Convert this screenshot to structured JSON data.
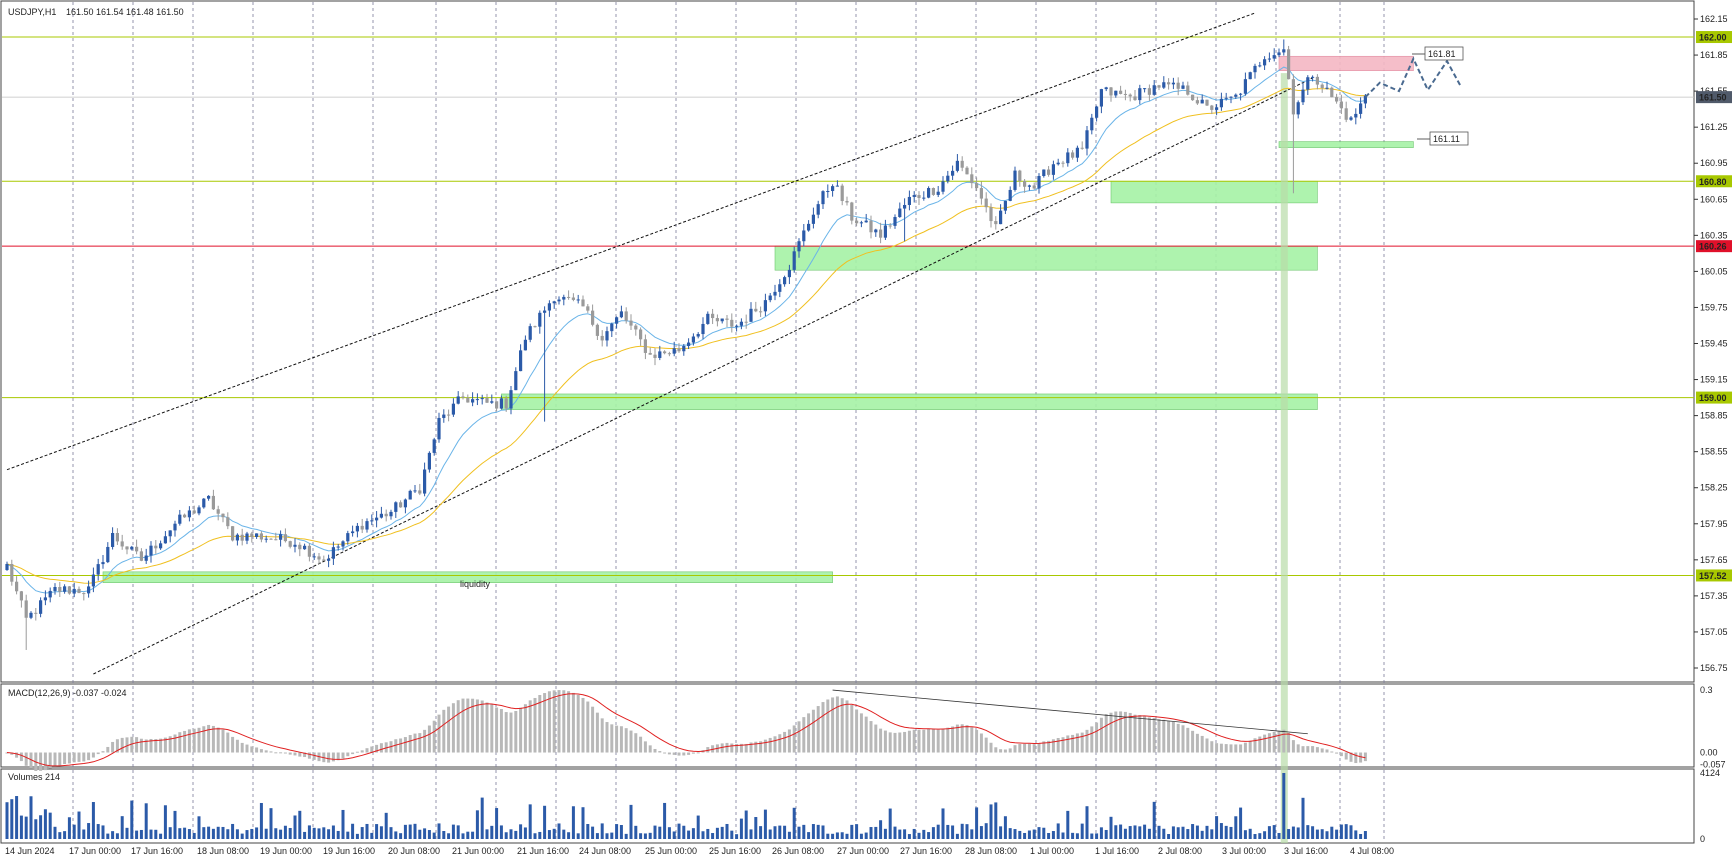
{
  "header": {
    "symbol": "USDJPY,H1",
    "ohlc": "161.50 161.54 161.48 161.50"
  },
  "panels": {
    "macd_label": "MACD(12,26,9) -0.037 -0.024",
    "volume_label": "Volumes 214"
  },
  "annotations": {
    "liquidity": "liquidity",
    "target_box": "161.81",
    "stop_box": "161.11"
  },
  "colors": {
    "bull_candle": "#2b5aa8",
    "bear_candle": "#9a9a9a",
    "ema_fast": "#6ab4e8",
    "ema_slow": "#f0c020",
    "level_line": "#a8c800",
    "red_line": "#e0102a",
    "zone_green": "#a6f2a6",
    "zone_red": "#f4b8c4",
    "macd_hist": "#b8b8b8",
    "macd_signal": "#e02020",
    "volume": "#2b5aa8",
    "grid": "#7a7a9a"
  },
  "chart_data": [
    {
      "type": "candlestick",
      "title": "USDJPY,H1",
      "x_tick_labels": [
        "14 Jun 2024",
        "17 Jun 00:00",
        "17 Jun 16:00",
        "18 Jun 08:00",
        "19 Jun 00:00",
        "19 Jun 16:00",
        "20 Jun 08:00",
        "21 Jun 00:00",
        "21 Jun 16:00",
        "24 Jun 08:00",
        "25 Jun 00:00",
        "25 Jun 16:00",
        "26 Jun 08:00",
        "27 Jun 00:00",
        "27 Jun 16:00",
        "28 Jun 08:00",
        "1 Jul 00:00",
        "1 Jul 16:00",
        "2 Jul 08:00",
        "3 Jul 00:00",
        "3 Jul 16:00",
        "4 Jul 08:00"
      ],
      "y_tick_labels": [
        "162.15",
        "161.85",
        "161.55",
        "161.25",
        "160.95",
        "160.65",
        "160.35",
        "160.05",
        "159.75",
        "159.45",
        "159.15",
        "158.85",
        "158.55",
        "158.25",
        "157.95",
        "157.65",
        "157.35",
        "157.05",
        "156.75"
      ],
      "ylim": [
        156.7,
        162.2
      ],
      "price_labels": [
        {
          "text": "162.00",
          "value": 162.0,
          "style": "level"
        },
        {
          "text": "161.50",
          "value": 161.5,
          "style": "current"
        },
        {
          "text": "160.80",
          "value": 160.8,
          "style": "level"
        },
        {
          "text": "160.26",
          "value": 160.26,
          "style": "red"
        },
        {
          "text": "159.00",
          "value": 159.0,
          "style": "level"
        },
        {
          "text": "157.52",
          "value": 157.52,
          "style": "level"
        }
      ],
      "horizontal_levels": [
        162.0,
        160.8,
        159.0,
        157.52
      ],
      "red_level": 160.26,
      "anchors": [
        {
          "i": 0,
          "p": 157.6
        },
        {
          "i": 4,
          "p": 157.15
        },
        {
          "i": 10,
          "p": 157.4
        },
        {
          "i": 17,
          "p": 157.4
        },
        {
          "i": 22,
          "p": 157.85
        },
        {
          "i": 28,
          "p": 157.65
        },
        {
          "i": 35,
          "p": 157.95
        },
        {
          "i": 42,
          "p": 158.15
        },
        {
          "i": 47,
          "p": 157.85
        },
        {
          "i": 52,
          "p": 157.85
        },
        {
          "i": 60,
          "p": 157.8
        },
        {
          "i": 66,
          "p": 157.65
        },
        {
          "i": 74,
          "p": 157.95
        },
        {
          "i": 80,
          "p": 158.05
        },
        {
          "i": 86,
          "p": 158.25
        },
        {
          "i": 90,
          "p": 158.8
        },
        {
          "i": 95,
          "p": 159.0
        },
        {
          "i": 100,
          "p": 158.95
        },
        {
          "i": 104,
          "p": 158.95
        },
        {
          "i": 108,
          "p": 159.5
        },
        {
          "i": 114,
          "p": 159.85
        },
        {
          "i": 120,
          "p": 159.75
        },
        {
          "i": 124,
          "p": 159.5
        },
        {
          "i": 128,
          "p": 159.7
        },
        {
          "i": 134,
          "p": 159.35
        },
        {
          "i": 140,
          "p": 159.4
        },
        {
          "i": 146,
          "p": 159.65
        },
        {
          "i": 152,
          "p": 159.6
        },
        {
          "i": 158,
          "p": 159.8
        },
        {
          "i": 163,
          "p": 160.1
        },
        {
          "i": 168,
          "p": 160.55
        },
        {
          "i": 172,
          "p": 160.8
        },
        {
          "i": 176,
          "p": 160.5
        },
        {
          "i": 182,
          "p": 160.35
        },
        {
          "i": 188,
          "p": 160.65
        },
        {
          "i": 194,
          "p": 160.75
        },
        {
          "i": 198,
          "p": 160.95
        },
        {
          "i": 202,
          "p": 160.75
        },
        {
          "i": 206,
          "p": 160.4
        },
        {
          "i": 210,
          "p": 160.85
        },
        {
          "i": 214,
          "p": 160.75
        },
        {
          "i": 218,
          "p": 160.95
        },
        {
          "i": 224,
          "p": 161.05
        },
        {
          "i": 228,
          "p": 161.55
        },
        {
          "i": 234,
          "p": 161.5
        },
        {
          "i": 240,
          "p": 161.6
        },
        {
          "i": 246,
          "p": 161.55
        },
        {
          "i": 250,
          "p": 161.4
        },
        {
          "i": 256,
          "p": 161.5
        },
        {
          "i": 262,
          "p": 161.85
        },
        {
          "i": 266,
          "p": 161.9
        },
        {
          "i": 268,
          "p": 161.4
        },
        {
          "i": 272,
          "p": 161.7
        },
        {
          "i": 276,
          "p": 161.5
        },
        {
          "i": 280,
          "p": 161.3
        },
        {
          "i": 283,
          "p": 161.5
        }
      ],
      "zones": [
        {
          "color": "green",
          "from_index": 230,
          "to_index": 273,
          "low": 160.62,
          "high": 160.8
        },
        {
          "color": "green",
          "from_index": 160,
          "to_index": 273,
          "low": 160.06,
          "high": 160.26
        },
        {
          "color": "green",
          "from_index": 103,
          "to_index": 273,
          "low": 158.9,
          "high": 159.03
        },
        {
          "color": "green",
          "from_index": 20,
          "to_index": 172,
          "low": 157.46,
          "high": 157.55
        },
        {
          "color": "red",
          "from_index": 265,
          "to_index": 293,
          "low": 161.72,
          "high": 161.84
        },
        {
          "color": "green",
          "from_index": 265,
          "to_index": 293,
          "low": 161.08,
          "high": 161.13
        }
      ],
      "trend_lines": [
        {
          "from": {
            "i": 0,
            "p": 158.4
          },
          "to": {
            "i": 260,
            "p": 162.2
          }
        },
        {
          "from": {
            "i": 18,
            "p": 156.7
          },
          "to": {
            "i": 272,
            "p": 161.66
          }
        }
      ],
      "projection": [
        {
          "i": 283,
          "p": 161.5
        },
        {
          "i": 286,
          "p": 161.62
        },
        {
          "i": 290,
          "p": 161.55
        },
        {
          "i": 293,
          "p": 161.82
        },
        {
          "i": 296,
          "p": 161.56
        },
        {
          "i": 300,
          "p": 161.8
        },
        {
          "i": 303,
          "p": 161.58
        }
      ]
    },
    {
      "type": "bar",
      "title": "MACD(12,26,9) -0.037 -0.024",
      "y_tick_labels": [
        "0.3",
        "0.00",
        "-0.057"
      ],
      "ylim": [
        -0.06,
        0.31
      ],
      "divergence_line": {
        "from_i": 172,
        "from_v": 0.3,
        "to_i": 271,
        "to_v": 0.09
      }
    },
    {
      "type": "bar",
      "title": "Volumes 214",
      "y_tick_labels": [
        "4124",
        "0"
      ],
      "ylim": [
        0,
        4124
      ],
      "peak": {
        "i": 266,
        "value": 4124
      }
    }
  ]
}
